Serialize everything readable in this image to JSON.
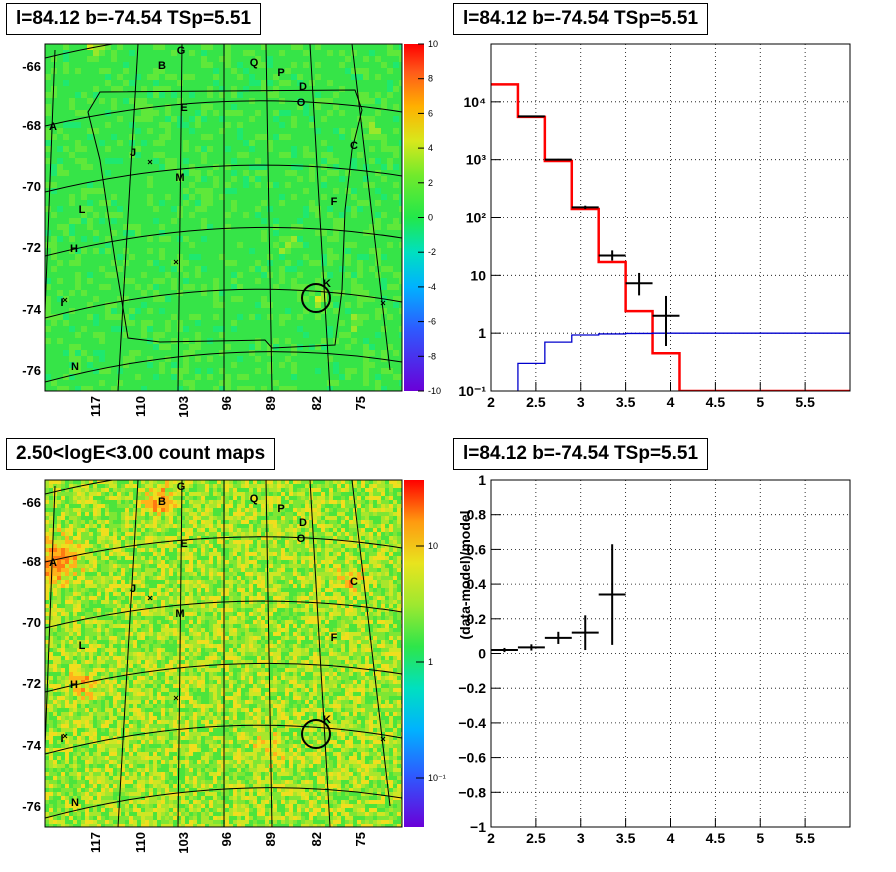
{
  "panels": {
    "skymap_top": {
      "title": "l=84.12 b=-74.54 TSp=5.51",
      "y_ticks": [
        "-66",
        "-68",
        "-70",
        "-72",
        "-74",
        "-76"
      ],
      "x_ticks": [
        "117",
        "110",
        "103",
        "96",
        "89",
        "82",
        "75"
      ],
      "colorbar_ticks": [
        "10",
        "8",
        "6",
        "4",
        "2",
        "0",
        "-2",
        "-4",
        "-6",
        "-8",
        "-10"
      ],
      "colorbar_range": [
        -10,
        10
      ],
      "source_labels": [
        "G",
        "B",
        "Q",
        "P",
        "D",
        "O",
        "E",
        "A",
        "C",
        "J",
        "M",
        "F",
        "L",
        "H",
        "K",
        "I",
        "N"
      ]
    },
    "skymap_bottom": {
      "title": "2.50<logE<3.00 count maps",
      "y_ticks": [
        "-66",
        "-68",
        "-70",
        "-72",
        "-74",
        "-76"
      ],
      "x_ticks": [
        "117",
        "110",
        "103",
        "96",
        "89",
        "82",
        "75"
      ],
      "colorbar_ticks": [
        "10",
        "1",
        "10⁻¹"
      ],
      "colorbar_scale": "log",
      "source_labels": [
        "G",
        "B",
        "Q",
        "P",
        "D",
        "O",
        "E",
        "A",
        "C",
        "J",
        "M",
        "F",
        "L",
        "H",
        "K",
        "I",
        "N"
      ]
    },
    "spectrum": {
      "title": "l=84.12 b=-74.54 TSp=5.51"
    },
    "residual": {
      "title": "l=84.12 b=-74.54 TSp=5.51"
    }
  },
  "chart_data": [
    {
      "type": "line",
      "panel": "spectrum",
      "title": "l=84.12 b=-74.54 TSp=5.51",
      "xlim": [
        2,
        6
      ],
      "ylim": [
        0.1,
        100000
      ],
      "yscale": "log",
      "x_ticks": [
        "2",
        "2.5",
        "3",
        "3.5",
        "4",
        "4.5",
        "5",
        "5.5"
      ],
      "y_ticks": [
        "10⁻¹",
        "1",
        "10",
        "10²",
        "10³",
        "10⁴"
      ],
      "grid": true,
      "series": [
        {
          "style": "histogram",
          "color": "#ff0000",
          "bin_edges": [
            2.0,
            2.3,
            2.6,
            2.9,
            3.2,
            3.5,
            3.8,
            4.1,
            4.4,
            6.0
          ],
          "values": [
            20000,
            5500,
            950,
            140,
            17,
            2.4,
            0.45,
            0.1,
            0.1
          ]
        },
        {
          "style": "histogram",
          "color": "#0000cc",
          "bin_edges": [
            2.0,
            2.3,
            2.6,
            2.9,
            3.2,
            3.5,
            3.8,
            4.1,
            4.4,
            6.0
          ],
          "values": [
            0.05,
            0.3,
            0.7,
            0.93,
            0.97,
            0.99,
            1.0,
            1.0,
            1.0
          ]
        },
        {
          "style": "errorbars",
          "color": "#000000",
          "points": [
            {
              "x": 2.45,
              "xerr": 0.15,
              "y": 5600,
              "ylo": 5500,
              "yhi": 5700
            },
            {
              "x": 2.75,
              "xerr": 0.15,
              "y": 1000,
              "ylo": 970,
              "yhi": 1030
            },
            {
              "x": 3.05,
              "xerr": 0.15,
              "y": 150,
              "ylo": 140,
              "yhi": 160
            },
            {
              "x": 3.35,
              "xerr": 0.15,
              "y": 22,
              "ylo": 18,
              "yhi": 27
            },
            {
              "x": 3.65,
              "xerr": 0.15,
              "y": 7.3,
              "ylo": 4.5,
              "yhi": 11
            },
            {
              "x": 3.95,
              "xerr": 0.15,
              "y": 2.0,
              "ylo": 0.6,
              "yhi": 4.4
            }
          ]
        }
      ]
    },
    {
      "type": "scatter",
      "panel": "residual",
      "title": "l=84.12 b=-74.54 TSp=5.51",
      "ylabel": "(data-model)/model",
      "xlim": [
        2,
        6
      ],
      "ylim": [
        -1,
        1
      ],
      "x_ticks": [
        "2",
        "2.5",
        "3",
        "3.5",
        "4",
        "4.5",
        "5",
        "5.5"
      ],
      "y_ticks": [
        "−1",
        "−0.8",
        "−0.6",
        "−0.4",
        "−0.2",
        "0",
        "0.2",
        "0.4",
        "0.6",
        "0.8",
        "1"
      ],
      "grid": true,
      "points": [
        {
          "x": 2.15,
          "xerr": 0.15,
          "y": 0.02,
          "yerr": 0.012
        },
        {
          "x": 2.45,
          "xerr": 0.15,
          "y": 0.035,
          "yerr": 0.018
        },
        {
          "x": 2.75,
          "xerr": 0.15,
          "y": 0.09,
          "yerr": 0.035
        },
        {
          "x": 3.05,
          "xerr": 0.15,
          "y": 0.12,
          "yerr": 0.1
        },
        {
          "x": 3.35,
          "xerr": 0.15,
          "y": 0.34,
          "yerr": 0.29
        }
      ]
    }
  ]
}
